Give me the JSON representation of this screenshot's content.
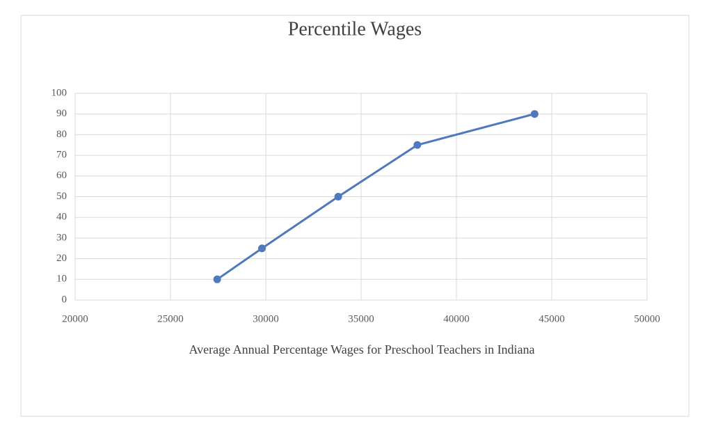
{
  "chart_data": {
    "type": "line",
    "title": "Percentile Wages",
    "x_label": "Average Annual Percentage Wages for Preschool Teachers in Indiana",
    "x": [
      27450,
      29800,
      33800,
      37950,
      44100
    ],
    "series": [
      {
        "color": "#4f79bd",
        "values": [
          10,
          25,
          50,
          75,
          90
        ]
      }
    ],
    "xlim": [
      20000,
      50000
    ],
    "xticks": [
      20000,
      25000,
      30000,
      35000,
      40000,
      45000,
      50000
    ],
    "ylim": [
      0,
      100
    ],
    "yticks": [
      0,
      10,
      20,
      30,
      40,
      50,
      60,
      70,
      80,
      90,
      100
    ],
    "grid": true
  }
}
